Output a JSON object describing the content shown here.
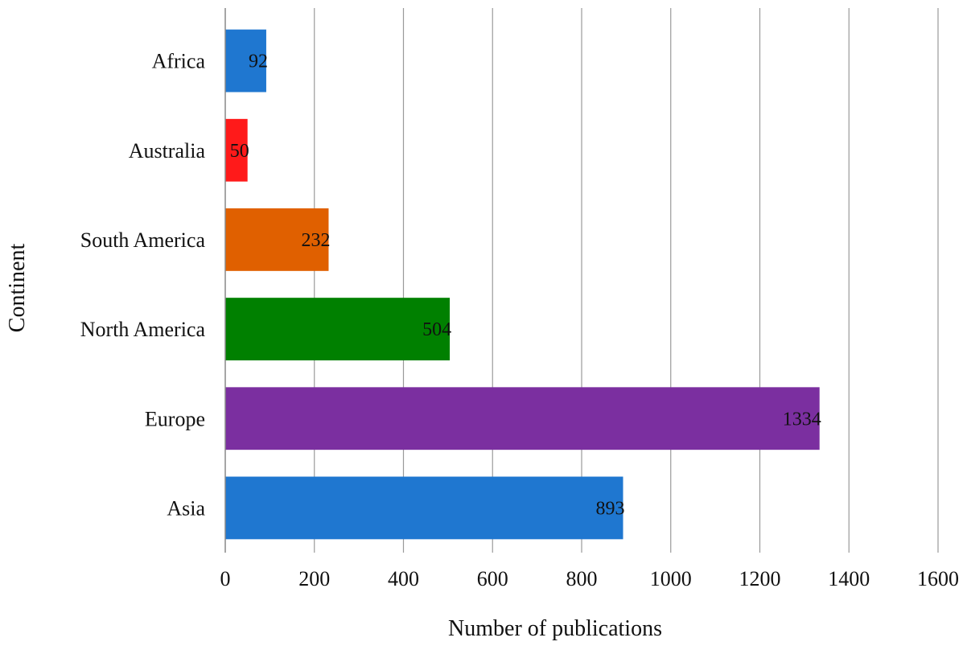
{
  "chart_data": {
    "type": "bar",
    "orientation": "horizontal",
    "title": "",
    "xlabel": "Number of publications",
    "ylabel": "Continent",
    "categories": [
      "Africa",
      "Australia",
      "South America",
      "North America",
      "Europe",
      "Asia"
    ],
    "values": [
      92,
      50,
      232,
      504,
      1334,
      893
    ],
    "data_labels": [
      "92",
      "50",
      "232",
      "504",
      "1334",
      "893"
    ],
    "bar_colors": [
      "#1f77d0",
      "#ff1a1a",
      "#e06000",
      "#008000",
      "#7b2fa0",
      "#1f77d0"
    ],
    "xlim": [
      0,
      1600
    ],
    "x_ticks": [
      0,
      200,
      400,
      600,
      800,
      1000,
      1200,
      1400,
      1600
    ],
    "x_tick_labels": [
      "0",
      "200",
      "400",
      "600",
      "800",
      "1000",
      "1200",
      "1400",
      "1600"
    ],
    "grid": "vertical",
    "legend": "none"
  }
}
